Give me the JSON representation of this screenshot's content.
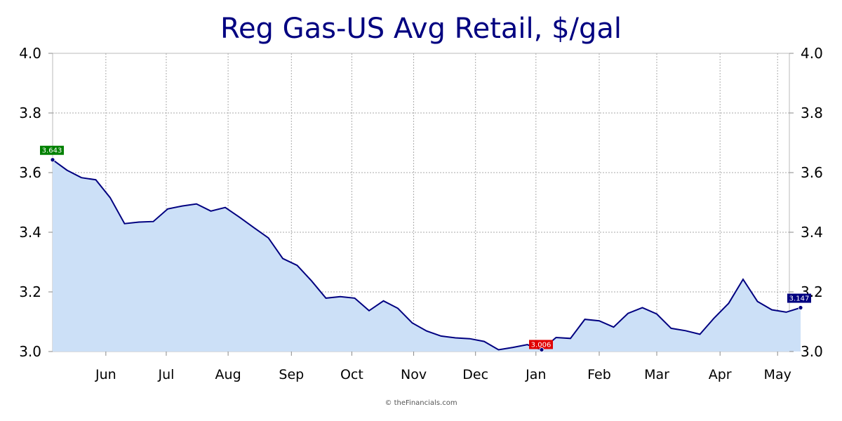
{
  "chart_data": {
    "type": "area",
    "title": "Reg Gas-US Avg Retail, $/gal",
    "credit": "© theFinancials.com",
    "ylim": [
      3.0,
      4.0
    ],
    "y_ticks": [
      "3.0",
      "3.2",
      "3.4",
      "3.6",
      "3.8",
      "4.0"
    ],
    "x_tick_labels": [
      "Jun",
      "Jul",
      "Aug",
      "Sep",
      "Oct",
      "Nov",
      "Dec",
      "Jan",
      "Feb",
      "Mar",
      "Apr",
      "May"
    ],
    "grid": true,
    "colors": {
      "line": "#000080",
      "fill": "#cce0f7",
      "grid": "#aaaaaa",
      "max_label": "#008000",
      "min_label": "#e00000",
      "last_label": "#000080"
    },
    "series": [
      {
        "values": [
          3.643,
          3.608,
          3.583,
          3.576,
          3.516,
          3.429,
          3.434,
          3.436,
          3.478,
          3.488,
          3.495,
          3.471,
          3.483,
          3.45,
          3.415,
          3.381,
          3.312,
          3.289,
          3.237,
          3.179,
          3.184,
          3.179,
          3.137,
          3.17,
          3.145,
          3.096,
          3.069,
          3.052,
          3.046,
          3.043,
          3.034,
          3.006,
          3.014,
          3.023,
          3.006,
          3.047,
          3.044,
          3.108,
          3.103,
          3.082,
          3.128,
          3.147,
          3.126,
          3.078,
          3.07,
          3.058,
          3.113,
          3.162,
          3.242,
          3.168,
          3.14,
          3.132,
          3.147
        ]
      }
    ],
    "annotations": [
      {
        "kind": "max",
        "label": "3.643",
        "index": 0
      },
      {
        "kind": "min",
        "label": "3.006",
        "index": 34
      },
      {
        "kind": "last",
        "label": "3.147",
        "index": 52
      }
    ]
  }
}
